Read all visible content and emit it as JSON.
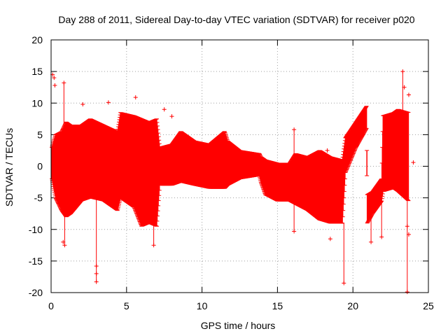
{
  "chart_data": {
    "type": "scatter",
    "title": "Day 288 of 2011, Sidereal Day-to-day VTEC variation (SDTVAR) for receiver p020",
    "xlabel": "GPS time / hours",
    "ylabel": "SDTVAR / TECUs",
    "xlim": [
      0,
      25
    ],
    "ylim": [
      -20,
      20
    ],
    "xticks": [
      0,
      5,
      10,
      15,
      20,
      25
    ],
    "yticks": [
      -20,
      -15,
      -10,
      -5,
      0,
      5,
      10,
      15,
      20
    ],
    "grid": true,
    "marker": "+",
    "series": [
      {
        "name": "SDTVAR",
        "color": "#ff0000",
        "envelope": [
          {
            "x": 0.05,
            "lo": -2.0,
            "hi": 3.0
          },
          {
            "x": 0.3,
            "lo": -5.0,
            "hi": 5.0
          },
          {
            "x": 0.7,
            "lo": -7.0,
            "hi": 5.5
          },
          {
            "x": 1.0,
            "lo": -8.0,
            "hi": 7.0
          },
          {
            "x": 1.3,
            "lo": -7.5,
            "hi": 6.5
          },
          {
            "x": 2.0,
            "lo": -5.5,
            "hi": 6.5
          },
          {
            "x": 2.6,
            "lo": -5.0,
            "hi": 7.5
          },
          {
            "x": 3.5,
            "lo": -5.5,
            "hi": 6.5
          },
          {
            "x": 4.4,
            "lo": -7.0,
            "hi": 5.5
          },
          {
            "x": 4.6,
            "lo": -5.0,
            "hi": 8.5
          },
          {
            "x": 5.5,
            "lo": -6.5,
            "hi": 8.0
          },
          {
            "x": 6.0,
            "lo": -9.5,
            "hi": 7.5
          },
          {
            "x": 6.5,
            "lo": -9.0,
            "hi": 7.0
          },
          {
            "x": 7.0,
            "lo": -9.5,
            "hi": 7.5
          },
          {
            "x": 7.2,
            "lo": -3.0,
            "hi": 3.0
          },
          {
            "x": 8.0,
            "lo": -3.0,
            "hi": 3.5
          },
          {
            "x": 8.6,
            "lo": -2.5,
            "hi": 5.5
          },
          {
            "x": 9.5,
            "lo": -3.0,
            "hi": 4.0
          },
          {
            "x": 10.5,
            "lo": -3.5,
            "hi": 3.5
          },
          {
            "x": 11.5,
            "lo": -3.5,
            "hi": 5.5
          },
          {
            "x": 11.7,
            "lo": -3.0,
            "hi": 4.0
          },
          {
            "x": 12.5,
            "lo": -2.0,
            "hi": 2.5
          },
          {
            "x": 13.8,
            "lo": -1.5,
            "hi": 2.0
          },
          {
            "x": 13.9,
            "lo": -2.5,
            "hi": 1.5
          },
          {
            "x": 14.2,
            "lo": -4.5,
            "hi": 1.0
          },
          {
            "x": 15.0,
            "lo": -5.5,
            "hi": 0.5
          },
          {
            "x": 15.8,
            "lo": -5.5,
            "hi": 0.5
          },
          {
            "x": 16.2,
            "lo": -6.0,
            "hi": 2.0
          },
          {
            "x": 17.0,
            "lo": -7.0,
            "hi": 1.5
          },
          {
            "x": 17.8,
            "lo": -8.5,
            "hi": 2.5
          },
          {
            "x": 18.5,
            "lo": -9.0,
            "hi": 1.5
          },
          {
            "x": 19.3,
            "lo": -9.0,
            "hi": 1.0
          },
          {
            "x": 19.5,
            "lo": -1.0,
            "hi": 4.5
          },
          {
            "x": 20.2,
            "lo": 3.0,
            "hi": 7.0
          },
          {
            "x": 20.9,
            "lo": 6.0,
            "hi": 9.5
          },
          {
            "x": 20.95,
            "lo": -9.0,
            "hi": -4.5
          },
          {
            "x": 21.3,
            "lo": -7.5,
            "hi": -4.0
          },
          {
            "x": 21.9,
            "lo": -5.5,
            "hi": -2.0
          },
          {
            "x": 22.0,
            "lo": -4.0,
            "hi": 8.0
          },
          {
            "x": 22.7,
            "lo": -3.5,
            "hi": 8.5
          },
          {
            "x": 23.0,
            "lo": -4.0,
            "hi": 9.0
          },
          {
            "x": 23.7,
            "lo": -5.5,
            "hi": 8.5
          }
        ],
        "points": [
          {
            "x": 0.1,
            "y": 14.5
          },
          {
            "x": 0.2,
            "y": 14.0
          },
          {
            "x": 0.25,
            "y": 12.8
          },
          {
            "x": 0.85,
            "y": 13.2
          },
          {
            "x": 0.8,
            "y": -12.0
          },
          {
            "x": 0.9,
            "y": -12.5
          },
          {
            "x": 2.1,
            "y": 9.8
          },
          {
            "x": 3.0,
            "y": -15.8
          },
          {
            "x": 3.0,
            "y": -18.3
          },
          {
            "x": 3.0,
            "y": -17.0
          },
          {
            "x": 3.8,
            "y": 10.1
          },
          {
            "x": 5.6,
            "y": 10.9
          },
          {
            "x": 6.8,
            "y": -12.5
          },
          {
            "x": 7.5,
            "y": 9.0
          },
          {
            "x": 8.0,
            "y": 7.9
          },
          {
            "x": 16.1,
            "y": 5.8
          },
          {
            "x": 16.1,
            "y": -10.3
          },
          {
            "x": 18.3,
            "y": 2.5
          },
          {
            "x": 18.5,
            "y": -11.5
          },
          {
            "x": 19.4,
            "y": -18.5
          },
          {
            "x": 19.6,
            "y": 5.0
          },
          {
            "x": 21.2,
            "y": -12.0
          },
          {
            "x": 21.9,
            "y": -11.2
          },
          {
            "x": 23.3,
            "y": 15.0
          },
          {
            "x": 23.4,
            "y": 12.5
          },
          {
            "x": 23.7,
            "y": 11.3
          },
          {
            "x": 23.7,
            "y": -10.8
          },
          {
            "x": 23.6,
            "y": -9.5
          },
          {
            "x": 23.6,
            "y": -19.9
          },
          {
            "x": 24.0,
            "y": 0.6
          }
        ]
      }
    ]
  }
}
